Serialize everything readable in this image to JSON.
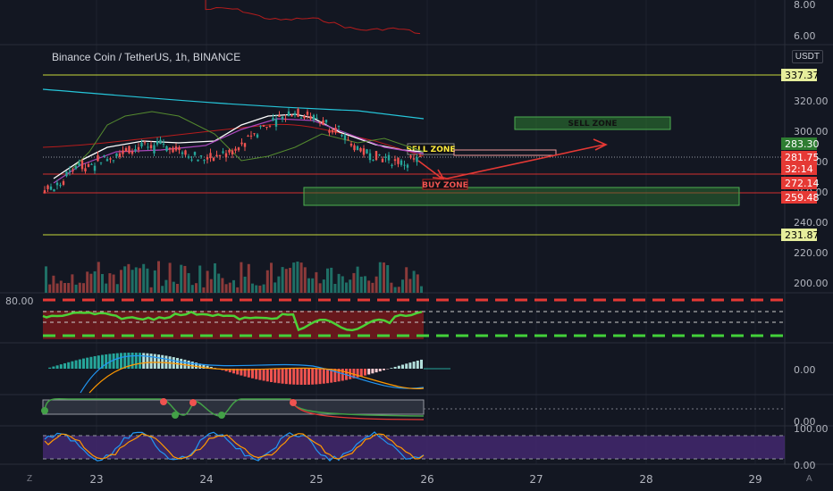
{
  "header": {
    "title": "Binance Coin / TetherUS, 1h, BINANCE",
    "currency": "USDT"
  },
  "corner_labels": {
    "left": "Z",
    "right": "A"
  },
  "colors": {
    "bg": "#131722",
    "up": "#26a69a",
    "down": "#ef5350",
    "zone_fill": "#2e7d32",
    "zone_border": "#4caf50",
    "yellow_line": "#c7d93a",
    "red_line": "#d32f2f"
  },
  "chart_data": [
    {
      "type": "candlestick",
      "title": "",
      "pane": "price",
      "x_ticks": [
        "23",
        "24",
        "25",
        "26",
        "27",
        "28",
        "29"
      ],
      "y_ticks": [
        "320.00",
        "300.00",
        "280.00",
        "260.00",
        "240.00",
        "220.00",
        "200.00"
      ],
      "price_labels": [
        {
          "value": "337.37",
          "style": "yellow"
        },
        {
          "value": "283.30",
          "style": "green"
        },
        {
          "value": "281.75",
          "style": "red"
        },
        {
          "value": "32:14",
          "style": "red"
        },
        {
          "value": "272.14",
          "style": "red"
        },
        {
          "value": "259.48",
          "style": "red"
        },
        {
          "value": "231.87",
          "style": "yellow"
        }
      ],
      "horizontal_lines": [
        337.37,
        272.14,
        259.48,
        231.87
      ],
      "zones": [
        {
          "label": "SELL ZONE",
          "from": 296,
          "to": 304
        },
        {
          "label": "BUY ZONE",
          "from": 256,
          "to": 268
        }
      ],
      "annotations": [
        "SELL ZONE",
        "BUY ZONE"
      ]
    },
    {
      "type": "line",
      "pane": "top indicator",
      "y_ticks": [
        "8.00",
        "6.00"
      ]
    },
    {
      "type": "line",
      "pane": "oscillator",
      "y_ticks": [
        "80.00"
      ]
    },
    {
      "type": "bar",
      "pane": "macd",
      "y_ticks": [
        "0.00"
      ]
    },
    {
      "type": "line",
      "pane": "trend",
      "y_ticks": [
        "0.00"
      ]
    },
    {
      "type": "line",
      "pane": "stochastic",
      "y_ticks": [
        "100.00",
        "0.00"
      ]
    }
  ]
}
